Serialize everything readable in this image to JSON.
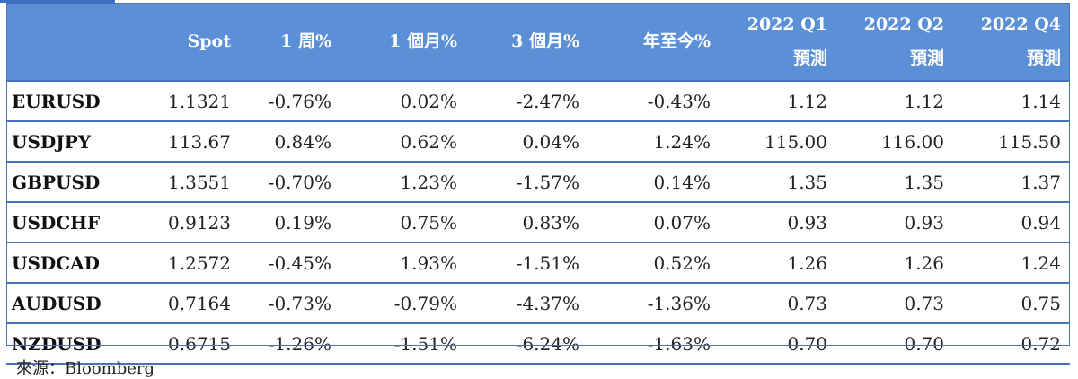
{
  "table": {
    "headers": {
      "pair": "",
      "spot": "Spot",
      "w1": "1 周%",
      "m1": "1 個月%",
      "m3": "3 個月%",
      "ytd": "年至今%",
      "q1_line1": "2022 Q1",
      "q1_line2": "預測",
      "q2_line1": "2022 Q2",
      "q2_line2": "預測",
      "q4_line1": "2022 Q4",
      "q4_line2": "預測"
    },
    "rows": [
      {
        "pair": "EURUSD",
        "spot": "1.1321",
        "w1": "-0.76%",
        "m1": "0.02%",
        "m3": "-2.47%",
        "ytd": "-0.43%",
        "q1": "1.12",
        "q2": "1.12",
        "q4": "1.14"
      },
      {
        "pair": "USDJPY",
        "spot": "113.67",
        "w1": "0.84%",
        "m1": "0.62%",
        "m3": "0.04%",
        "ytd": "1.24%",
        "q1": "115.00",
        "q2": "116.00",
        "q4": "115.50"
      },
      {
        "pair": "GBPUSD",
        "spot": "1.3551",
        "w1": "-0.70%",
        "m1": "1.23%",
        "m3": "-1.57%",
        "ytd": "0.14%",
        "q1": "1.35",
        "q2": "1.35",
        "q4": "1.37"
      },
      {
        "pair": "USDCHF",
        "spot": "0.9123",
        "w1": "0.19%",
        "m1": "0.75%",
        "m3": "0.83%",
        "ytd": "0.07%",
        "q1": "0.93",
        "q2": "0.93",
        "q4": "0.94"
      },
      {
        "pair": "USDCAD",
        "spot": "1.2572",
        "w1": "-0.45%",
        "m1": "1.93%",
        "m3": "-1.51%",
        "ytd": "0.52%",
        "q1": "1.26",
        "q2": "1.26",
        "q4": "1.24"
      },
      {
        "pair": "AUDUSD",
        "spot": "0.7164",
        "w1": "-0.73%",
        "m1": "-0.79%",
        "m3": "-4.37%",
        "ytd": "-1.36%",
        "q1": "0.73",
        "q2": "0.73",
        "q4": "0.75"
      },
      {
        "pair": "NZDUSD",
        "spot": "0.6715",
        "w1": "-1.26%",
        "m1": "-1.51%",
        "m3": "-6.24%",
        "ytd": "-1.63%",
        "q1": "0.70",
        "q2": "0.70",
        "q4": "0.72"
      }
    ]
  },
  "source": "來源：Bloomberg",
  "colors": {
    "header_bg": "#5b8fd6",
    "border": "#4a74b8",
    "header_text": "#ffffff"
  }
}
